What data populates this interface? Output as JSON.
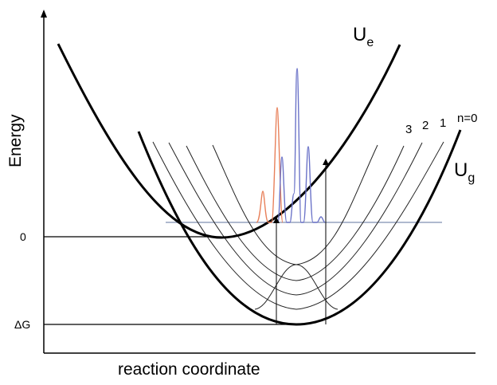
{
  "axes": {
    "y_label": "Energy",
    "x_label": "reaction coordinate",
    "ticks": {
      "zero": "0",
      "delta_g": "ΔG"
    }
  },
  "curves": {
    "excited": {
      "main": "U",
      "sub": "e"
    },
    "ground": {
      "main": "U",
      "sub": "g"
    }
  },
  "levels": {
    "n3": "3",
    "n2": "2",
    "n1": "1",
    "n0": "n=0"
  },
  "colors": {
    "ink": "#000000",
    "thin": "#222222",
    "blue_peaks": "#6b73c8",
    "orange_peak": "#e8805a",
    "horizontal_line": "#7f8fb0"
  }
}
